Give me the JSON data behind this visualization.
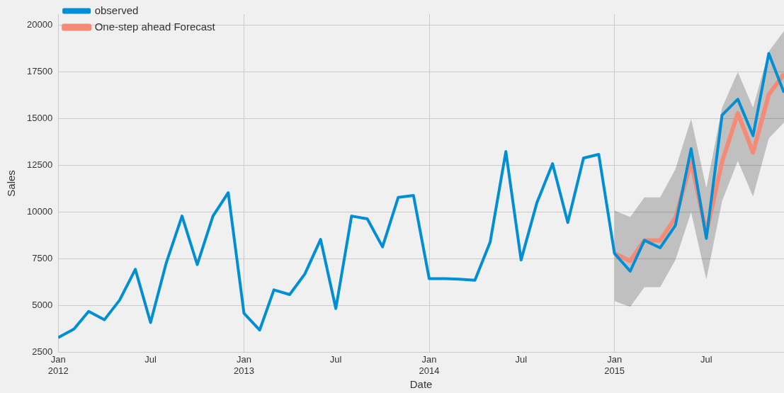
{
  "chart_data": {
    "type": "line",
    "xlabel": "Date",
    "ylabel": "Sales",
    "x": [
      "2012-01",
      "2012-02",
      "2012-03",
      "2012-04",
      "2012-05",
      "2012-06",
      "2012-07",
      "2012-08",
      "2012-09",
      "2012-10",
      "2012-11",
      "2012-12",
      "2013-01",
      "2013-02",
      "2013-03",
      "2013-04",
      "2013-05",
      "2013-06",
      "2013-07",
      "2013-08",
      "2013-09",
      "2013-10",
      "2013-11",
      "2013-12",
      "2014-01",
      "2014-02",
      "2014-03",
      "2014-04",
      "2014-05",
      "2014-06",
      "2014-07",
      "2014-08",
      "2014-09",
      "2014-10",
      "2014-11",
      "2014-12",
      "2015-01",
      "2015-02",
      "2015-03",
      "2015-04",
      "2015-05",
      "2015-06",
      "2015-07",
      "2015-08",
      "2015-09",
      "2015-10",
      "2015-11",
      "2015-12"
    ],
    "series": [
      {
        "name": "observed",
        "color": "#008fd5",
        "values": [
          3300,
          3750,
          4700,
          4250,
          5300,
          6950,
          4100,
          7300,
          9800,
          7200,
          9800,
          11050,
          4600,
          3700,
          5850,
          5600,
          6700,
          8550,
          4850,
          9800,
          9650,
          8150,
          10800,
          10900,
          6450,
          6450,
          6420,
          6370,
          8400,
          13250,
          7450,
          10500,
          12600,
          9450,
          12900,
          13100,
          7800,
          6850,
          8500,
          8100,
          9300,
          13400,
          8600,
          15200,
          16050,
          14100,
          18500,
          16400
        ]
      },
      {
        "name": "One-step ahead Forecast",
        "color": "#f58b76",
        "x": [
          "2015-01",
          "2015-02",
          "2015-03",
          "2015-04",
          "2015-05",
          "2015-06",
          "2015-07",
          "2015-08",
          "2015-09",
          "2015-10",
          "2015-11",
          "2015-12"
        ],
        "values": [
          7800,
          7400,
          8500,
          8500,
          9700,
          12700,
          8900,
          12700,
          15300,
          13200,
          16300,
          17400
        ],
        "lower": [
          5250,
          4950,
          6000,
          6000,
          7450,
          10000,
          6400,
          10600,
          12750,
          10850,
          13950,
          14800
        ],
        "upper": [
          10100,
          9750,
          10800,
          10800,
          12300,
          15000,
          11300,
          15600,
          17500,
          15600,
          18600,
          19700
        ]
      }
    ],
    "xlim": [
      "2012-01",
      "2015-12"
    ],
    "xticks": [
      {
        "value": "2012-01",
        "label": "Jan\n2012"
      },
      {
        "value": "2012-07",
        "label": "Jul"
      },
      {
        "value": "2013-01",
        "label": "Jan\n2013"
      },
      {
        "value": "2013-07",
        "label": "Jul"
      },
      {
        "value": "2014-01",
        "label": "Jan\n2014"
      },
      {
        "value": "2014-07",
        "label": "Jul"
      },
      {
        "value": "2015-01",
        "label": "Jan\n2015"
      },
      {
        "value": "2015-07",
        "label": "Jul"
      }
    ],
    "ylim": [
      2500,
      20600
    ],
    "yticks": [
      2500,
      5000,
      7500,
      10000,
      12500,
      15000,
      17500,
      20000
    ],
    "grid": true,
    "legend": "top left",
    "marker": "none",
    "line_style": "solid"
  }
}
